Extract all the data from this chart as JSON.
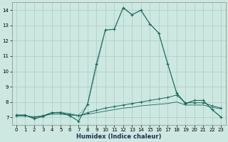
{
  "xlabel": "Humidex (Indice chaleur)",
  "background_color": "#cce8e0",
  "grid_color": "#aaccc4",
  "line_color": "#1a6858",
  "xlim": [
    -0.5,
    23.5
  ],
  "ylim": [
    6.5,
    14.5
  ],
  "xticks": [
    0,
    1,
    2,
    3,
    4,
    5,
    6,
    7,
    8,
    9,
    10,
    11,
    12,
    13,
    14,
    15,
    16,
    17,
    18,
    19,
    20,
    21,
    22,
    23
  ],
  "yticks": [
    7,
    8,
    9,
    10,
    11,
    12,
    13,
    14
  ],
  "line_dotted_x": [
    0,
    1,
    2,
    3,
    4,
    5,
    6,
    7,
    8,
    9,
    10,
    11,
    12,
    13,
    14,
    15,
    16,
    17,
    18,
    19,
    20,
    21,
    22,
    23
  ],
  "line_dotted_y": [
    7.1,
    7.1,
    7.05,
    7.1,
    7.3,
    7.35,
    7.25,
    7.15,
    7.8,
    10.2,
    12.7,
    12.75,
    14.2,
    13.7,
    13.95,
    13.1,
    12.5,
    10.5,
    8.6,
    7.85,
    8.1,
    8.1,
    7.5,
    7.05
  ],
  "line_solid_markers_x": [
    0,
    1,
    2,
    3,
    4,
    5,
    6,
    7,
    8,
    9,
    10,
    11,
    12,
    13,
    14,
    15,
    16,
    17,
    18,
    19,
    20,
    21,
    22,
    23
  ],
  "line_solid_markers_y": [
    7.15,
    7.15,
    6.9,
    7.05,
    7.3,
    7.3,
    7.1,
    6.75,
    7.85,
    10.5,
    12.7,
    12.75,
    14.15,
    13.7,
    14.0,
    13.1,
    12.5,
    10.5,
    8.6,
    7.9,
    8.1,
    8.1,
    7.5,
    7.0
  ],
  "line_flat1_x": [
    0,
    1,
    2,
    3,
    4,
    5,
    6,
    7,
    8,
    9,
    10,
    11,
    12,
    13,
    14,
    15,
    16,
    17,
    18,
    19,
    20,
    21,
    22,
    23
  ],
  "line_flat1_y": [
    7.1,
    7.1,
    7.0,
    7.1,
    7.3,
    7.3,
    7.2,
    7.1,
    7.3,
    7.45,
    7.6,
    7.7,
    7.8,
    7.9,
    8.0,
    8.1,
    8.2,
    8.3,
    8.45,
    7.95,
    7.95,
    7.95,
    7.75,
    7.6
  ],
  "line_flat2_x": [
    0,
    1,
    2,
    3,
    4,
    5,
    6,
    7,
    8,
    9,
    10,
    11,
    12,
    13,
    14,
    15,
    16,
    17,
    18,
    19,
    20,
    21,
    22,
    23
  ],
  "line_flat2_y": [
    7.1,
    7.1,
    7.0,
    7.1,
    7.2,
    7.2,
    7.15,
    7.1,
    7.2,
    7.3,
    7.4,
    7.5,
    7.6,
    7.65,
    7.75,
    7.8,
    7.85,
    7.9,
    8.0,
    7.8,
    7.8,
    7.8,
    7.65,
    7.55
  ]
}
